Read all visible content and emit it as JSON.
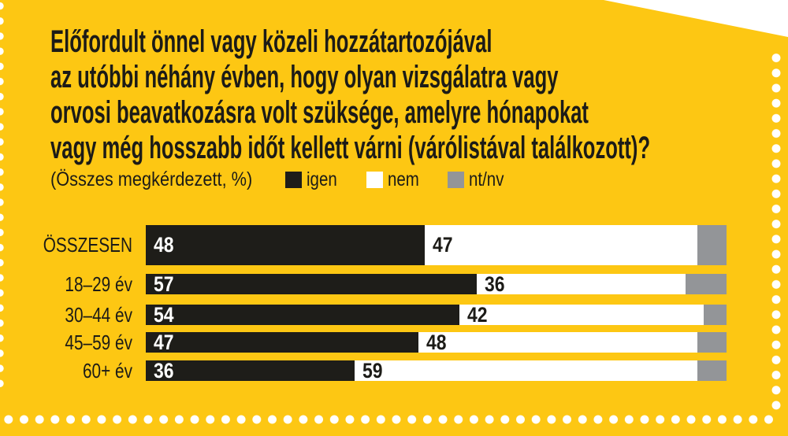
{
  "title": {
    "text": "Előfordult önnel vagy közeli hozzátartozójával\naz utóbbi néhány évben, hogy olyan vizsgálatra vagy\norvosi beavatkozásra volt szüksége, amelyre hónapokat\nvagy még hosszabb időt kellett várni (várólistával találkozott)?"
  },
  "caption": "(Összes megkérdezett, %)",
  "legend": {
    "items": [
      {
        "label": "igen",
        "color": "#1e1d19"
      },
      {
        "label": "nem",
        "color": "#ffffff"
      },
      {
        "label": "nt/nv",
        "color": "#939598"
      }
    ]
  },
  "colors": {
    "background": "#fdc713",
    "page": "#ffffff",
    "text": "#1c1b17",
    "dots": "#ffffff",
    "igen": "#1e1d19",
    "nem": "#ffffff",
    "ntnv": "#939598"
  },
  "chart_data": {
    "type": "bar",
    "orientation": "horizontal",
    "stacked": true,
    "unit": "%",
    "axis_max": 100,
    "grid": false,
    "legend_position": "top",
    "categories": [
      "ÖSSZESEN",
      "18–29 év",
      "30–44 év",
      "45–59 év",
      "60+ év"
    ],
    "series": [
      {
        "name": "igen",
        "color": "#1e1d19",
        "values": [
          48,
          57,
          54,
          47,
          36
        ]
      },
      {
        "name": "nem",
        "color": "#ffffff",
        "values": [
          47,
          36,
          42,
          48,
          59
        ]
      },
      {
        "name": "nt/nv",
        "color": "#939598",
        "values": [
          5,
          7,
          4,
          5,
          5
        ]
      }
    ]
  }
}
